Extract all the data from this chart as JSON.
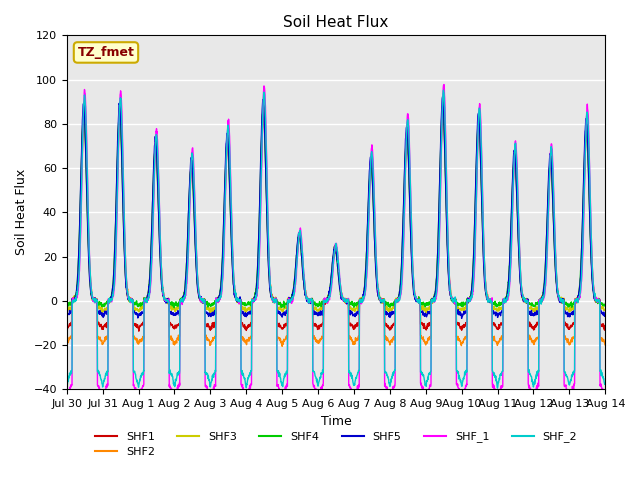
{
  "title": "Soil Heat Flux",
  "xlabel": "Time",
  "ylabel": "Soil Heat Flux",
  "ylim": [
    -40,
    120
  ],
  "yticks": [
    -40,
    -20,
    0,
    20,
    40,
    60,
    80,
    100,
    120
  ],
  "annotation_text": "TZ_fmet",
  "annotation_bg": "#ffffcc",
  "annotation_border": "#ccaa00",
  "annotation_text_color": "#880000",
  "series_colors": {
    "SHF1": "#cc0000",
    "SHF2": "#ff8800",
    "SHF3": "#cccc00",
    "SHF4": "#00cc00",
    "SHF5": "#0000cc",
    "SHF_1": "#ff00ff",
    "SHF_2": "#00cccc"
  },
  "legend_order": [
    "SHF1",
    "SHF2",
    "SHF3",
    "SHF4",
    "SHF5",
    "SHF_1",
    "SHF_2"
  ],
  "background_color": "#e8e8e8",
  "grid_color": "white",
  "num_days": 15,
  "points_per_day": 144
}
